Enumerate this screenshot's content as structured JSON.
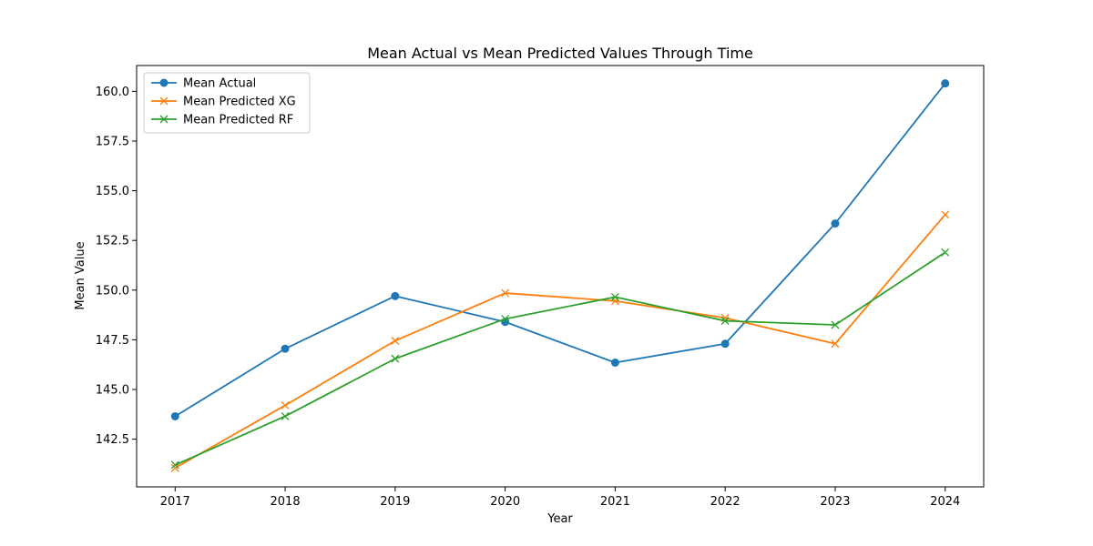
{
  "chart_data": {
    "type": "line",
    "title": "Mean Actual vs Mean Predicted Values Through Time",
    "xlabel": "Year",
    "ylabel": "Mean Value",
    "x": [
      2017,
      2018,
      2019,
      2020,
      2021,
      2022,
      2023,
      2024
    ],
    "x_tick_labels": [
      "2017",
      "2018",
      "2019",
      "2020",
      "2021",
      "2022",
      "2023",
      "2024"
    ],
    "y_ticks": [
      142.5,
      145.0,
      147.5,
      150.0,
      152.5,
      155.0,
      157.5,
      160.0
    ],
    "y_tick_labels": [
      "142.5",
      "145.0",
      "147.5",
      "150.0",
      "152.5",
      "155.0",
      "157.5",
      "160.0"
    ],
    "xlim": [
      2016.65,
      2024.35
    ],
    "ylim": [
      140.1,
      161.3
    ],
    "grid": false,
    "legend_position": "upper-left",
    "series": [
      {
        "name": "Mean Actual",
        "color": "#1f77b4",
        "marker": "circle",
        "values": [
          143.65,
          147.05,
          149.7,
          148.4,
          146.35,
          147.3,
          153.35,
          160.4
        ]
      },
      {
        "name": "Mean Predicted XG",
        "color": "#ff7f0e",
        "marker": "x",
        "values": [
          141.05,
          144.2,
          147.45,
          149.85,
          149.45,
          148.6,
          147.3,
          153.8
        ]
      },
      {
        "name": "Mean Predicted RF",
        "color": "#2ca02c",
        "marker": "x",
        "values": [
          141.2,
          143.65,
          146.55,
          148.55,
          149.65,
          148.45,
          148.25,
          151.9
        ]
      }
    ]
  }
}
